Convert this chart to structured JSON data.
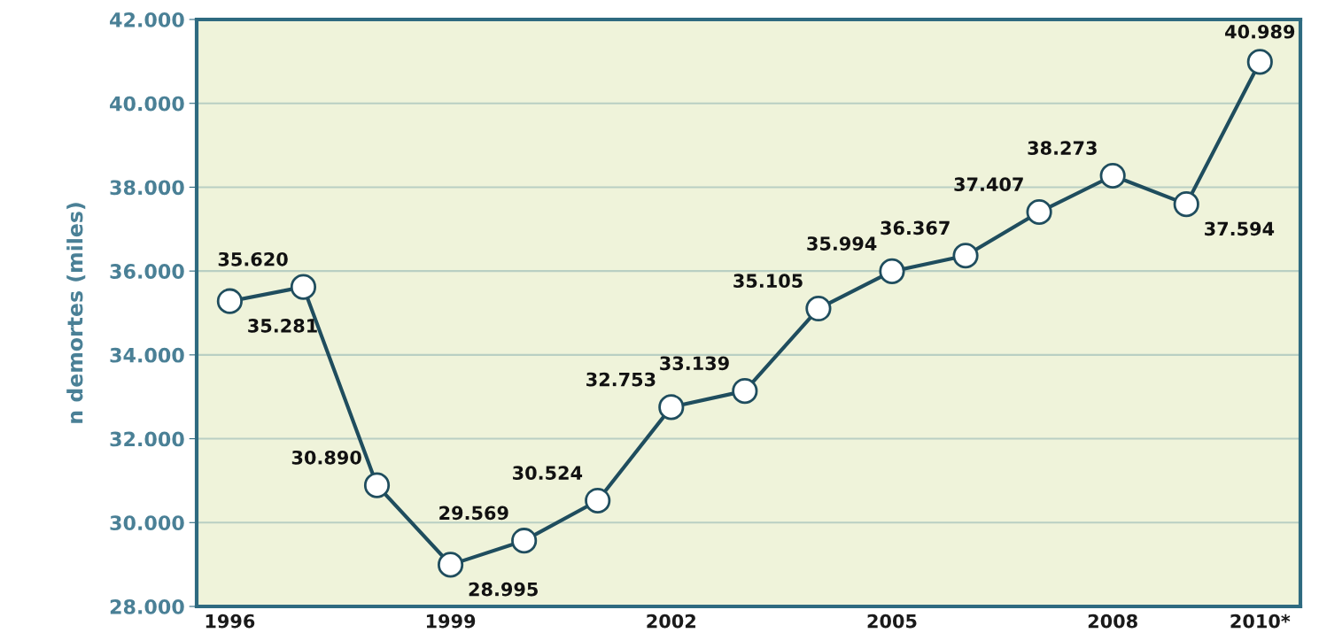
{
  "chart_data": {
    "type": "line",
    "ylabel": "n demortes (miles)",
    "categories": [
      "1996",
      null,
      null,
      "1999",
      null,
      null,
      "2002",
      null,
      null,
      "2005",
      null,
      null,
      "2008",
      null,
      "2010*"
    ],
    "series": [
      {
        "color": "#1f4d5e",
        "values": [
          35281,
          35620,
          30890,
          28995,
          29569,
          30524,
          32753,
          33139,
          35105,
          35994,
          36367,
          37407,
          38273,
          37594,
          40989
        ],
        "value_labels": [
          "35.281",
          "35.620",
          "30.890",
          "28.995",
          "29.569",
          "30.524",
          "32.753",
          "33.139",
          "35.105",
          "35.994",
          "36.367",
          "37.407",
          "38.273",
          "37.594",
          "40.989"
        ]
      }
    ],
    "ylim": [
      28000,
      42000
    ],
    "yticks": [
      {
        "value": 28000,
        "label": "28.000"
      },
      {
        "value": 30000,
        "label": "30.000"
      },
      {
        "value": 32000,
        "label": "32.000"
      },
      {
        "value": 34000,
        "label": "34.000"
      },
      {
        "value": 36000,
        "label": "36.000"
      },
      {
        "value": 38000,
        "label": "38.000"
      },
      {
        "value": 40000,
        "label": "40.000"
      },
      {
        "value": 42000,
        "label": "42.000"
      }
    ],
    "grid": "y",
    "marker": "circle",
    "line_style": "solid"
  }
}
